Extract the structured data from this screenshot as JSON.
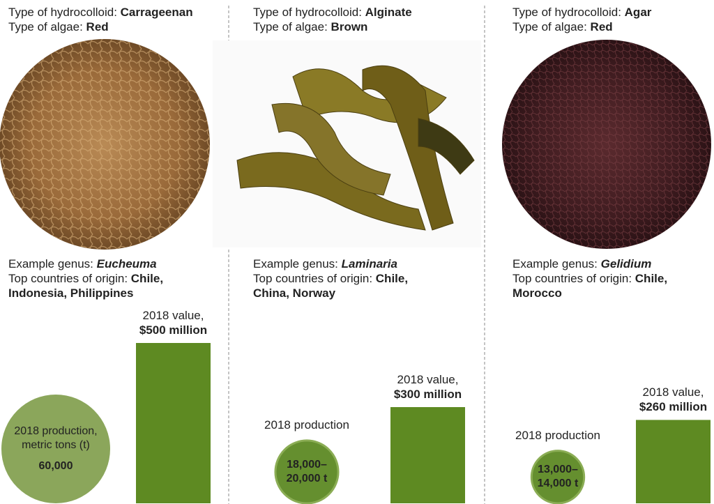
{
  "panels": [
    {
      "hydrocolloid_label": "Type of hydrocolloid:",
      "hydrocolloid": "Carrageenan",
      "algae_label": "Type of algae:",
      "algae": "Red",
      "genus_label": "Example genus:",
      "genus": "Eucheuma",
      "origin_label": "Top countries of origin:",
      "origin": "Chile, Indonesia, Philippines",
      "production": {
        "label": "2018 production, metric tons (t)",
        "values": [
          60000
        ],
        "value_label": "60,000"
      },
      "value": {
        "label": "2018 value,",
        "value": 500,
        "value_label": "$500 million"
      }
    },
    {
      "hydrocolloid_label": "Type of hydrocolloid:",
      "hydrocolloid": "Alginate",
      "algae_label": "Type of algae:",
      "algae": "Brown",
      "genus_label": "Example genus:",
      "genus": "Laminaria",
      "origin_label": "Top countries of origin:",
      "origin": "Chile, China, Norway",
      "production": {
        "label": "2018 production",
        "values": [
          18000,
          20000
        ],
        "value_label": "18,000–20,000 t"
      },
      "value": {
        "label": "2018 value,",
        "value": 300,
        "value_label": "$300 million"
      }
    },
    {
      "hydrocolloid_label": "Type of hydrocolloid:",
      "hydrocolloid": "Agar",
      "algae_label": "Type of algae:",
      "algae": "Red",
      "genus_label": "Example genus:",
      "genus": "Gelidium",
      "origin_label": "Top countries of origin:",
      "origin": "Chile, Morocco",
      "production": {
        "label": "2018 production",
        "values": [
          13000,
          14000
        ],
        "value_label": "13,000–14,000 t"
      },
      "value": {
        "label": "2018 value,",
        "value": 260,
        "value_label": "$260 million"
      }
    }
  ]
}
